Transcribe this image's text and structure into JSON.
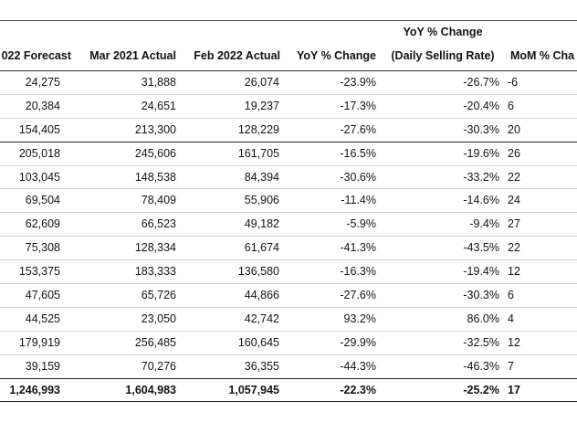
{
  "table": {
    "headers": [
      {
        "line1": "",
        "line2": "022 Forecast"
      },
      {
        "line1": "",
        "line2": "Mar 2021 Actual"
      },
      {
        "line1": "",
        "line2": "Feb 2022 Actual"
      },
      {
        "line1": "",
        "line2": "YoY % Change"
      },
      {
        "line1": "YoY % Change",
        "line2": "(Daily Selling Rate)"
      },
      {
        "line1": "",
        "line2": "MoM % Cha"
      }
    ],
    "rows": [
      {
        "cells": [
          "24,275",
          "31,888",
          "26,074",
          "-23.9%",
          "-26.7%",
          "-6"
        ],
        "style": "normal"
      },
      {
        "cells": [
          "20,384",
          "24,651",
          "19,237",
          "-17.3%",
          "-20.4%",
          "6"
        ],
        "style": "normal"
      },
      {
        "cells": [
          "154,405",
          "213,300",
          "128,229",
          "-27.6%",
          "-30.3%",
          "20"
        ],
        "style": "thick"
      },
      {
        "cells": [
          "205,018",
          "245,606",
          "161,705",
          "-16.5%",
          "-19.6%",
          "26"
        ],
        "style": "normal"
      },
      {
        "cells": [
          "103,045",
          "148,538",
          "84,394",
          "-30.6%",
          "-33.2%",
          "22"
        ],
        "style": "normal"
      },
      {
        "cells": [
          "69,504",
          "78,409",
          "55,906",
          "-11.4%",
          "-14.6%",
          "24"
        ],
        "style": "normal"
      },
      {
        "cells": [
          "62,609",
          "66,523",
          "49,182",
          "-5.9%",
          "-9.4%",
          "27"
        ],
        "style": "normal"
      },
      {
        "cells": [
          "75,308",
          "128,334",
          "61,674",
          "-41.3%",
          "-43.5%",
          "22"
        ],
        "style": "normal"
      },
      {
        "cells": [
          "153,375",
          "183,333",
          "136,580",
          "-16.3%",
          "-19.4%",
          "12"
        ],
        "style": "normal"
      },
      {
        "cells": [
          "47,605",
          "65,726",
          "44,866",
          "-27.6%",
          "-30.3%",
          "6"
        ],
        "style": "normal"
      },
      {
        "cells": [
          "44,525",
          "23,050",
          "42,742",
          "93.2%",
          "86.0%",
          "4"
        ],
        "style": "normal"
      },
      {
        "cells": [
          "179,919",
          "256,485",
          "160,645",
          "-29.9%",
          "-32.5%",
          "12"
        ],
        "style": "normal"
      },
      {
        "cells": [
          "39,159",
          "70,276",
          "36,355",
          "-44.3%",
          "-46.3%",
          "7"
        ],
        "style": "thick"
      }
    ],
    "total": {
      "cells": [
        "1,246,993",
        "1,604,983",
        "1,057,945",
        "-22.3%",
        "-25.2%",
        "17"
      ]
    }
  }
}
